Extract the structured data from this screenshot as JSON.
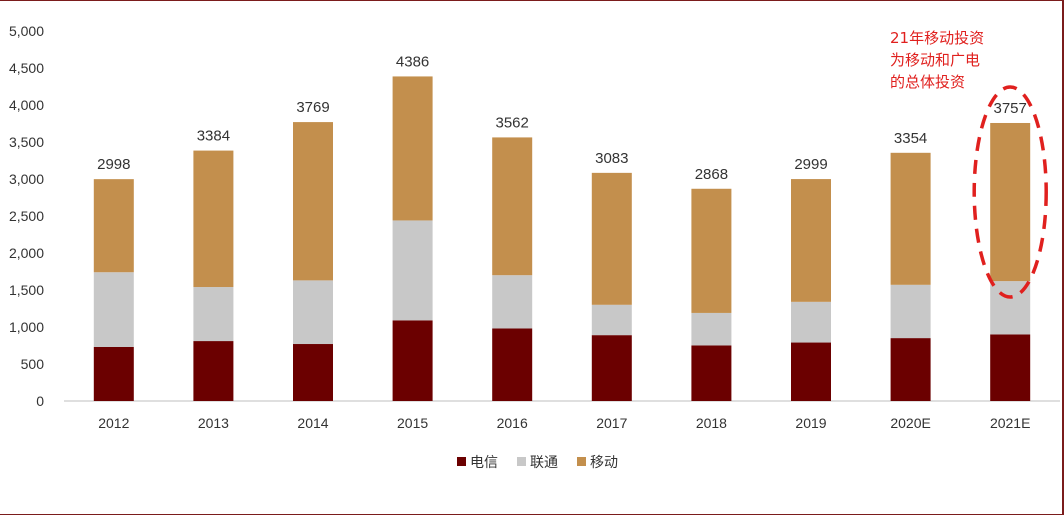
{
  "chart_data": {
    "type": "bar",
    "stacked": true,
    "categories": [
      "2012",
      "2013",
      "2014",
      "2015",
      "2016",
      "2017",
      "2018",
      "2019",
      "2020E",
      "2021E"
    ],
    "series": [
      {
        "name": "电信",
        "color": "#6b0000",
        "values": [
          730,
          810,
          770,
          1090,
          980,
          890,
          750,
          790,
          850,
          900
        ]
      },
      {
        "name": "联通",
        "color": "#c8c8c8",
        "values": [
          1010,
          730,
          860,
          1350,
          720,
          410,
          440,
          550,
          720,
          720
        ]
      },
      {
        "name": "移动",
        "color": "#c38f4d",
        "values": [
          1258,
          1844,
          2139,
          1946,
          1862,
          1783,
          1678,
          1659,
          1784,
          2137
        ]
      }
    ],
    "totals": [
      "2998",
      "3384",
      "3769",
      "4386",
      "3562",
      "3083",
      "2868",
      "2999",
      "3354",
      "3757"
    ],
    "yticks": [
      "0",
      "500",
      "1,000",
      "1,500",
      "2,000",
      "2,500",
      "3,000",
      "3,500",
      "4,000",
      "4,500",
      "5,000"
    ],
    "ylim": [
      0,
      5000
    ],
    "legend_position": "bottom",
    "grid": false,
    "title": "",
    "xlabel": "",
    "ylabel": "",
    "annotation": {
      "lines": [
        "21年移动投资",
        "为移动和广电",
        "的总体投资"
      ],
      "color": "#e0201e",
      "highlight_category": "2021E",
      "highlight_style": "dashed-ellipse"
    }
  }
}
